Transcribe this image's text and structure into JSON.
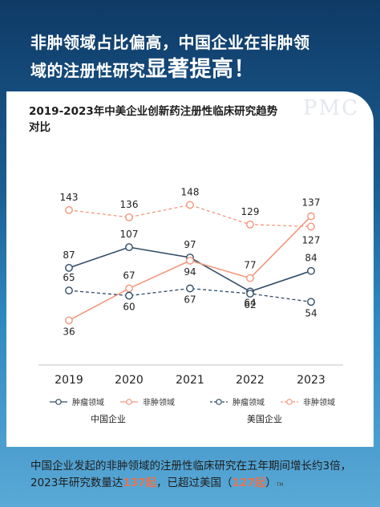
{
  "headline": {
    "line1": "非肿领域占比偏高，中国企业在非肿领",
    "line2_prefix": "域的注册性研究",
    "line2_emph": "显著提高！"
  },
  "watermark": "PMC",
  "caption": {
    "part1": "中国企业发起的非肿领域的注册性临床研究在五年期间增长约3倍，2023年研究数量达",
    "value_cn": "137起",
    "part2": "，已超过美国（",
    "value_us": "127起",
    "part3": "）",
    "mark": "TM"
  },
  "colors": {
    "china_oncology": "#2f4a66",
    "china_non_oncology": "#f2977d",
    "us_oncology": "#2f4a66",
    "us_non_oncology": "#f2977d"
  },
  "chart_data": {
    "type": "line",
    "title": "2019-2023年中美企业创新药注册性临床研究趋势对比",
    "x": [
      "2019",
      "2020",
      "2021",
      "2022",
      "2023"
    ],
    "xlabel": "",
    "ylabel": "",
    "ylim": [
      20,
      160
    ],
    "grid": false,
    "series": [
      {
        "name": "肿瘤领域",
        "group": "中国企业",
        "style": "solid",
        "values": [
          87,
          107,
          97,
          64,
          84
        ]
      },
      {
        "name": "非肿领域",
        "group": "中国企业",
        "style": "solid",
        "values": [
          36,
          67,
          94,
          77,
          137
        ]
      },
      {
        "name": "肿瘤领域",
        "group": "美国企业",
        "style": "dashed",
        "values": [
          65,
          60,
          67,
          62,
          54
        ]
      },
      {
        "name": "非肿领域",
        "group": "美国企业",
        "style": "dashed",
        "values": [
          143,
          136,
          148,
          129,
          127
        ]
      }
    ],
    "legend_groups": [
      "中国企业",
      "美国企业"
    ],
    "legend_position": "bottom"
  }
}
